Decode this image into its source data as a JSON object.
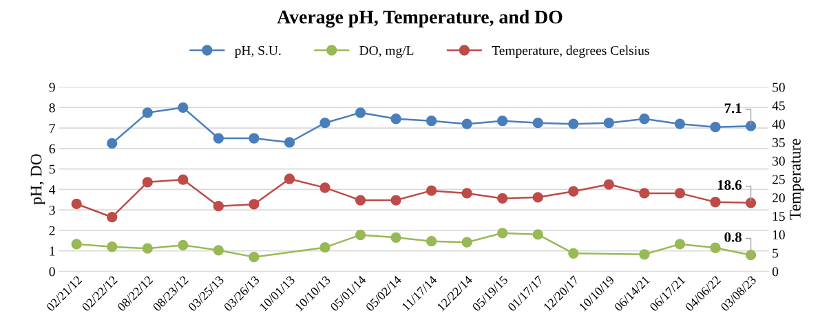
{
  "chart_data": {
    "type": "line",
    "title": "Average pH, Temperature, and DO",
    "ylabel": "pH, DO",
    "y2label": "Temperature",
    "categories": [
      "02/21/12",
      "02/22/12",
      "08/22/12",
      "08/23/12",
      "03/25/13",
      "03/26/13",
      "10/01/13",
      "10/10/13",
      "05/01/14",
      "05/02/14",
      "11/17/14",
      "12/22/14",
      "05/19/15",
      "01/17/17",
      "12/20/17",
      "10/10/19",
      "06/14/21",
      "06/17/21",
      "04/06/22",
      "03/08/23"
    ],
    "series": [
      {
        "name": "pH, S.U.",
        "color": "#4a7ebb",
        "values": [
          null,
          6.25,
          7.75,
          8.0,
          6.5,
          6.5,
          6.3,
          7.25,
          7.75,
          7.45,
          7.35,
          7.2,
          7.35,
          7.25,
          7.2,
          7.25,
          7.45,
          7.2,
          7.05,
          7.1
        ],
        "value_labels": [
          null,
          null,
          null,
          null,
          null,
          null,
          null,
          null,
          null,
          null,
          null,
          null,
          null,
          null,
          null,
          null,
          null,
          null,
          null,
          "7.1"
        ]
      },
      {
        "name": "DO, mg/L",
        "color": "#98b954",
        "values": [
          1.33,
          1.2,
          1.12,
          1.28,
          1.03,
          0.7,
          null,
          1.17,
          1.78,
          1.65,
          1.47,
          1.42,
          1.87,
          1.8,
          0.88,
          null,
          0.83,
          1.33,
          1.15,
          0.8
        ],
        "value_labels": [
          null,
          null,
          null,
          null,
          null,
          null,
          null,
          null,
          null,
          null,
          null,
          null,
          null,
          null,
          null,
          null,
          null,
          null,
          null,
          "0.8"
        ]
      },
      {
        "name": "Temperature, degrees Celsius",
        "color": "#be4b48",
        "axis": "y2",
        "values": [
          18.3,
          14.7,
          24.2,
          24.9,
          17.7,
          18.2,
          25.1,
          22.7,
          19.3,
          19.3,
          21.9,
          21.2,
          19.8,
          20.1,
          21.7,
          23.6,
          21.2,
          21.2,
          18.8,
          18.6
        ],
        "value_labels": [
          null,
          null,
          null,
          null,
          null,
          null,
          null,
          null,
          null,
          null,
          null,
          null,
          null,
          null,
          null,
          null,
          null,
          null,
          null,
          "18.6"
        ]
      }
    ],
    "ylim": [
      0,
      9
    ],
    "yticks": [
      0,
      1,
      2,
      3,
      4,
      5,
      6,
      7,
      8,
      9
    ],
    "y2lim": [
      0,
      50
    ],
    "y2ticks": [
      0,
      5,
      10,
      15,
      20,
      25,
      30,
      35,
      40,
      45,
      50
    ],
    "grid": "y",
    "legend": "top",
    "marker": "circle",
    "line_style": "solid"
  }
}
